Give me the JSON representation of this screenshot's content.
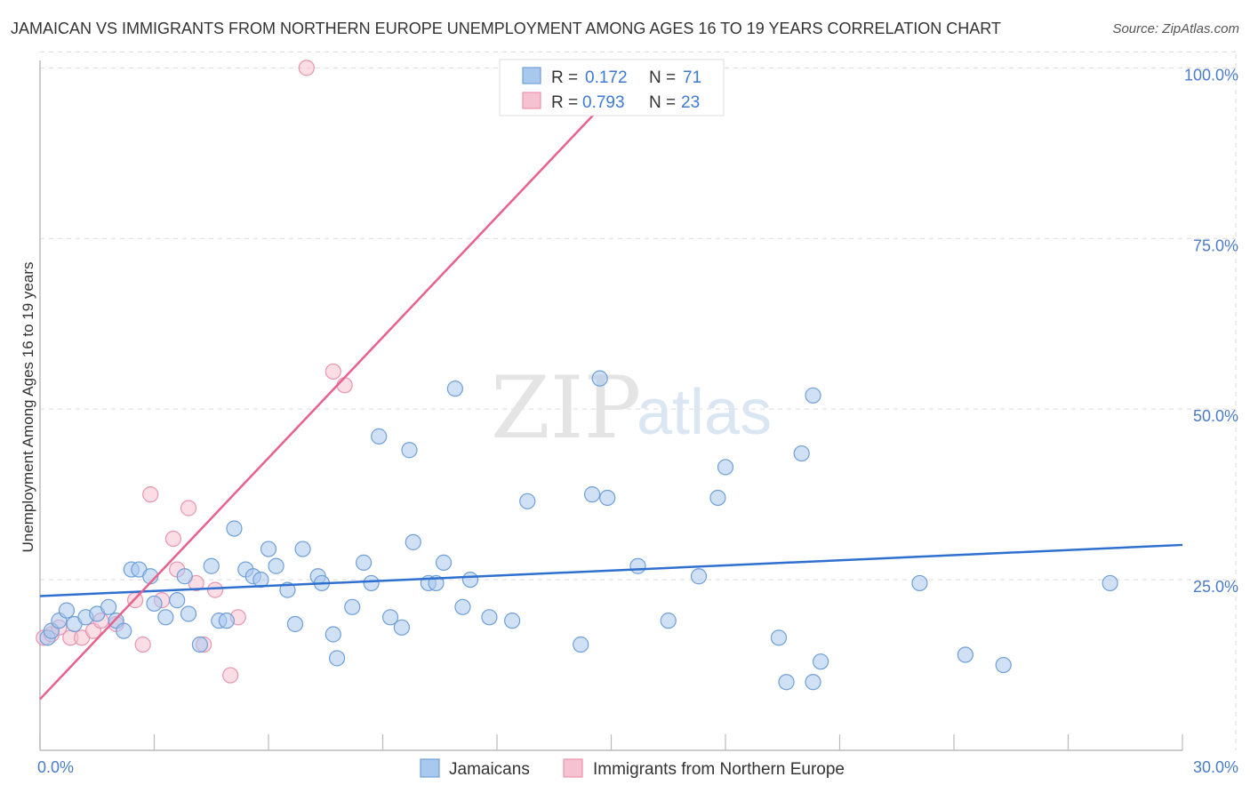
{
  "header": {
    "title": "JAMAICAN VS IMMIGRANTS FROM NORTHERN EUROPE UNEMPLOYMENT AMONG AGES 16 TO 19 YEARS CORRELATION CHART",
    "source": "Source: ZipAtlas.com"
  },
  "watermark": {
    "zip": "ZIP",
    "atlas": "atlas"
  },
  "colors": {
    "blue_fill": "#a9c8ee",
    "blue_stroke": "#6f9fd8",
    "blue_line": "#2f6fcf",
    "pink_fill": "#f6c1d0",
    "pink_stroke": "#e995af",
    "pink_line": "#e8608c",
    "grid": "#d9d9d9",
    "axis_text": "#4a7cc9"
  },
  "legend": {
    "rows": [
      {
        "r_label": "R =",
        "r_value": "0.172",
        "n_label": "N =",
        "n_value": "71"
      },
      {
        "r_label": "R =",
        "r_value": "0.793",
        "n_label": "N =",
        "n_value": "23"
      }
    ]
  },
  "bottom_legend": {
    "items": [
      {
        "label": "Jamaicans"
      },
      {
        "label": "Immigrants from Northern Europe"
      }
    ]
  },
  "chart_data": {
    "type": "scatter",
    "title": "JAMAICAN VS IMMIGRANTS FROM NORTHERN EUROPE UNEMPLOYMENT AMONG AGES 16 TO 19 YEARS CORRELATION CHART",
    "xlabel": "",
    "ylabel": "Unemployment Among Ages 16 to 19 years",
    "xlim": [
      0,
      30
    ],
    "ylim": [
      0,
      102
    ],
    "x_tick_labels": [
      "0.0%",
      "30.0%"
    ],
    "y_ticks": [
      25,
      50,
      75,
      100
    ],
    "y_tick_labels": [
      "25.0%",
      "50.0%",
      "75.0%",
      "100.0%"
    ],
    "grid": true,
    "legend_position": "top-center",
    "series": [
      {
        "name": "Jamaicans",
        "r": 0.172,
        "n": 71,
        "trend": {
          "x": [
            0,
            30
          ],
          "y": [
            22.6,
            30.1
          ]
        },
        "points": [
          [
            0.2,
            16.5
          ],
          [
            0.3,
            17.5
          ],
          [
            0.5,
            19.0
          ],
          [
            0.7,
            20.5
          ],
          [
            0.9,
            18.5
          ],
          [
            1.2,
            19.5
          ],
          [
            1.5,
            20.0
          ],
          [
            1.8,
            21.0
          ],
          [
            2.0,
            19.0
          ],
          [
            2.2,
            17.5
          ],
          [
            2.4,
            26.5
          ],
          [
            2.6,
            26.5
          ],
          [
            2.9,
            25.5
          ],
          [
            3.0,
            21.5
          ],
          [
            3.3,
            19.5
          ],
          [
            3.6,
            22.0
          ],
          [
            3.8,
            25.5
          ],
          [
            3.9,
            20.0
          ],
          [
            4.2,
            15.5
          ],
          [
            4.5,
            27.0
          ],
          [
            4.7,
            19.0
          ],
          [
            4.9,
            19.0
          ],
          [
            5.1,
            32.5
          ],
          [
            5.4,
            26.5
          ],
          [
            5.6,
            25.5
          ],
          [
            5.8,
            25.0
          ],
          [
            6.0,
            29.5
          ],
          [
            6.2,
            27.0
          ],
          [
            6.5,
            23.5
          ],
          [
            6.7,
            18.5
          ],
          [
            6.9,
            29.5
          ],
          [
            7.3,
            25.5
          ],
          [
            7.4,
            24.5
          ],
          [
            7.7,
            17.0
          ],
          [
            7.8,
            13.5
          ],
          [
            8.2,
            21.0
          ],
          [
            8.5,
            27.5
          ],
          [
            8.7,
            24.5
          ],
          [
            8.9,
            46.0
          ],
          [
            9.2,
            19.5
          ],
          [
            9.5,
            18.0
          ],
          [
            9.7,
            44.0
          ],
          [
            9.8,
            30.5
          ],
          [
            10.2,
            24.5
          ],
          [
            10.4,
            24.5
          ],
          [
            10.6,
            27.5
          ],
          [
            10.9,
            53.0
          ],
          [
            11.1,
            21.0
          ],
          [
            11.3,
            25.0
          ],
          [
            11.8,
            19.5
          ],
          [
            12.4,
            19.0
          ],
          [
            12.8,
            36.5
          ],
          [
            14.2,
            15.5
          ],
          [
            14.5,
            37.5
          ],
          [
            14.7,
            54.5
          ],
          [
            14.9,
            37.0
          ],
          [
            15.7,
            27.0
          ],
          [
            16.5,
            19.0
          ],
          [
            17.3,
            25.5
          ],
          [
            17.8,
            37.0
          ],
          [
            18.0,
            41.5
          ],
          [
            19.4,
            16.5
          ],
          [
            19.6,
            10.0
          ],
          [
            20.0,
            43.5
          ],
          [
            20.3,
            52.0
          ],
          [
            20.3,
            10.0
          ],
          [
            20.5,
            13.0
          ],
          [
            23.1,
            24.5
          ],
          [
            24.3,
            14.0
          ],
          [
            25.3,
            12.5
          ],
          [
            28.1,
            24.5
          ]
        ]
      },
      {
        "name": "Immigrants from Northern Europe",
        "r": 0.793,
        "n": 23,
        "trend": {
          "x": [
            0,
            15.7
          ],
          "y": [
            7.5,
            100.0
          ]
        },
        "points": [
          [
            0.1,
            16.5
          ],
          [
            0.3,
            17.0
          ],
          [
            0.5,
            18.0
          ],
          [
            0.8,
            16.5
          ],
          [
            1.1,
            16.5
          ],
          [
            1.4,
            17.5
          ],
          [
            1.6,
            19.0
          ],
          [
            2.0,
            18.5
          ],
          [
            2.5,
            22.0
          ],
          [
            2.7,
            15.5
          ],
          [
            2.9,
            37.5
          ],
          [
            3.2,
            22.0
          ],
          [
            3.5,
            31.0
          ],
          [
            3.6,
            26.5
          ],
          [
            3.9,
            35.5
          ],
          [
            4.1,
            24.5
          ],
          [
            4.3,
            15.5
          ],
          [
            4.6,
            23.5
          ],
          [
            5.0,
            11.0
          ],
          [
            5.2,
            19.5
          ],
          [
            7.0,
            100.0
          ],
          [
            7.7,
            55.5
          ],
          [
            8.0,
            53.5
          ]
        ]
      }
    ]
  }
}
